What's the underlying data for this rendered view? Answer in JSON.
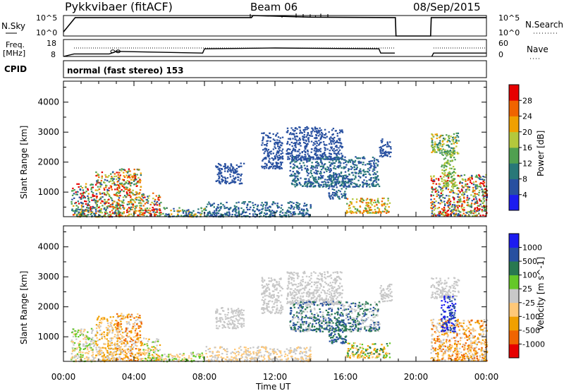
{
  "header": {
    "station": "Pykkvibaer (fitACF)",
    "beam": "Beam 06",
    "date": "08/Sep/2015"
  },
  "nsky_panel": {
    "left_label": "N.Sky",
    "right_label": "N.Search",
    "left_ticks": [
      "10^5",
      "10^0"
    ],
    "right_ticks": [
      "10^5",
      "10^0"
    ]
  },
  "freq_panel": {
    "left_label_1": "Freq.",
    "left_label_2": "[MHz]",
    "right_label": "Nave",
    "left_ticks": [
      "18",
      "8"
    ],
    "right_ticks": [
      "60",
      "0"
    ]
  },
  "cpid": {
    "label": "CPID",
    "value": "normal (fast stereo) 153"
  },
  "xaxis": {
    "label": "Time UT",
    "ticks": [
      "00:00",
      "04:00",
      "08:00",
      "12:00",
      "16:00",
      "20:00",
      "00:00"
    ]
  },
  "yaxis": {
    "label": "Slant Range [km]",
    "ticks": [
      "1000",
      "2000",
      "3000",
      "4000"
    ]
  },
  "colors": {
    "power": [
      "#1c1cf0",
      "#2850a0",
      "#287878",
      "#50a050",
      "#b4c83c",
      "#f0a000",
      "#f06400",
      "#e60000"
    ],
    "velocity": [
      "#e60000",
      "#f06400",
      "#f0a000",
      "#ffc878",
      "#c8c8c8",
      "#64c828",
      "#287850",
      "#2850a0",
      "#1c1cf0"
    ]
  },
  "chart_data": [
    {
      "type": "line",
      "panel": "N.Sky / N.Search",
      "x": [
        "00:00",
        "00:40",
        "10:40",
        "10:45",
        "14:00",
        "18:50",
        "18:52",
        "20:50",
        "20:52",
        "24:00"
      ],
      "values": [
        1,
        4.5,
        4.5,
        5,
        4.6,
        4.5,
        0,
        0,
        4.5,
        4.5
      ],
      "ylim": [
        0,
        5
      ]
    },
    {
      "type": "line",
      "panel": "Freq. / Nave",
      "series": [
        {
          "x": [
            0,
            0.6,
            2.6,
            3.0,
            7.9,
            8.0,
            12.0,
            17.9,
            18.0,
            18.8,
            20.9,
            21.0,
            24.0
          ],
          "values": [
            8,
            9.5,
            9.5,
            11,
            10,
            12.5,
            13,
            12.5,
            10,
            10,
            10,
            10,
            10
          ]
        }
      ],
      "ylim": [
        8,
        18
      ]
    },
    {
      "type": "heatmap",
      "panel": "Power",
      "xlabel": "Time UT",
      "ylabel": "Slant Range [km]",
      "xlim": [
        0,
        24
      ],
      "ylim": [
        180,
        4700
      ],
      "colorbar_label": "Power [dB]",
      "colorbar_ticks": [
        "4",
        "8",
        "12",
        "16",
        "20",
        "24",
        "28"
      ],
      "colorbar_range": [
        0,
        32
      ],
      "regions": [
        {
          "t": [
            0.4,
            1.8
          ],
          "r": [
            200,
            1300
          ],
          "levels": [
            1,
            2,
            3,
            5,
            7
          ]
        },
        {
          "t": [
            1.8,
            3.2
          ],
          "r": [
            200,
            1700
          ],
          "levels": [
            1,
            3,
            4,
            6,
            7
          ]
        },
        {
          "t": [
            3.0,
            4.4
          ],
          "r": [
            220,
            1800
          ],
          "levels": [
            2,
            3,
            4,
            5,
            6,
            7
          ]
        },
        {
          "t": [
            4.4,
            5.5
          ],
          "r": [
            220,
            1000
          ],
          "levels": [
            1,
            3,
            4,
            6,
            7
          ]
        },
        {
          "t": [
            5.5,
            8.0
          ],
          "r": [
            200,
            500
          ],
          "levels": [
            1,
            2,
            3,
            5
          ]
        },
        {
          "t": [
            8.0,
            14.0
          ],
          "r": [
            200,
            700
          ],
          "levels": [
            1,
            2
          ]
        },
        {
          "t": [
            8.6,
            10.2
          ],
          "r": [
            1300,
            2000
          ],
          "levels": [
            1
          ]
        },
        {
          "t": [
            11.2,
            12.4
          ],
          "r": [
            1800,
            3000
          ],
          "levels": [
            1
          ]
        },
        {
          "t": [
            12.6,
            15.8
          ],
          "r": [
            2100,
            3200
          ],
          "levels": [
            1
          ]
        },
        {
          "t": [
            12.8,
            17.9
          ],
          "r": [
            1200,
            2200
          ],
          "levels": [
            1,
            2
          ]
        },
        {
          "t": [
            15.0,
            16.0
          ],
          "r": [
            800,
            1600
          ],
          "levels": [
            1,
            2
          ]
        },
        {
          "t": [
            16.0,
            18.5
          ],
          "r": [
            320,
            820
          ],
          "levels": [
            3,
            4,
            5,
            6
          ]
        },
        {
          "t": [
            17.9,
            18.6
          ],
          "r": [
            2200,
            2800
          ],
          "levels": [
            1
          ]
        },
        {
          "t": [
            20.8,
            22.4
          ],
          "r": [
            2300,
            3000
          ],
          "levels": [
            2,
            3,
            4,
            5
          ]
        },
        {
          "t": [
            20.8,
            24.0
          ],
          "r": [
            220,
            1600
          ],
          "levels": [
            1,
            3,
            4,
            6,
            7
          ]
        },
        {
          "t": [
            21.4,
            22.2
          ],
          "r": [
            1200,
            2400
          ],
          "levels": [
            3,
            4
          ]
        }
      ]
    },
    {
      "type": "heatmap",
      "panel": "Velocity",
      "xlabel": "Time UT",
      "ylabel": "Slant Range [km]",
      "xlim": [
        0,
        24
      ],
      "ylim": [
        180,
        4700
      ],
      "colorbar_label": "Velocity [m s^-1]",
      "colorbar_ticks": [
        "-1000",
        "-500",
        "-100",
        "-25",
        "25",
        "100",
        "500",
        "1000"
      ],
      "regions": [
        {
          "t": [
            0.4,
            1.8
          ],
          "r": [
            200,
            1300
          ],
          "levels": [
            3,
            4,
            5
          ]
        },
        {
          "t": [
            1.8,
            3.2
          ],
          "r": [
            200,
            1700
          ],
          "levels": [
            2,
            3,
            4
          ]
        },
        {
          "t": [
            3.0,
            4.4
          ],
          "r": [
            220,
            1800
          ],
          "levels": [
            1,
            2,
            3,
            4
          ]
        },
        {
          "t": [
            4.4,
            5.5
          ],
          "r": [
            220,
            1000
          ],
          "levels": [
            2,
            3,
            4,
            5
          ]
        },
        {
          "t": [
            5.5,
            8.0
          ],
          "r": [
            200,
            500
          ],
          "levels": [
            3,
            4,
            5
          ]
        },
        {
          "t": [
            8.0,
            14.0
          ],
          "r": [
            200,
            700
          ],
          "levels": [
            3,
            4
          ]
        },
        {
          "t": [
            8.6,
            10.2
          ],
          "r": [
            1300,
            2000
          ],
          "levels": [
            4
          ]
        },
        {
          "t": [
            11.2,
            12.4
          ],
          "r": [
            1800,
            3000
          ],
          "levels": [
            4
          ]
        },
        {
          "t": [
            12.6,
            15.8
          ],
          "r": [
            2100,
            3200
          ],
          "levels": [
            4
          ]
        },
        {
          "t": [
            12.8,
            17.9
          ],
          "r": [
            1200,
            2200
          ],
          "levels": [
            4,
            6,
            7
          ]
        },
        {
          "t": [
            15.0,
            16.0
          ],
          "r": [
            800,
            1600
          ],
          "levels": [
            6,
            7
          ]
        },
        {
          "t": [
            16.0,
            18.5
          ],
          "r": [
            320,
            820
          ],
          "levels": [
            2,
            3,
            5,
            6
          ]
        },
        {
          "t": [
            17.9,
            18.6
          ],
          "r": [
            2200,
            2800
          ],
          "levels": [
            4
          ]
        },
        {
          "t": [
            20.8,
            22.4
          ],
          "r": [
            2300,
            3000
          ],
          "levels": [
            4
          ]
        },
        {
          "t": [
            20.8,
            24.0
          ],
          "r": [
            220,
            1600
          ],
          "levels": [
            1,
            2,
            3,
            4
          ]
        },
        {
          "t": [
            21.4,
            22.2
          ],
          "r": [
            1200,
            2400
          ],
          "levels": [
            7,
            8
          ]
        }
      ]
    }
  ]
}
